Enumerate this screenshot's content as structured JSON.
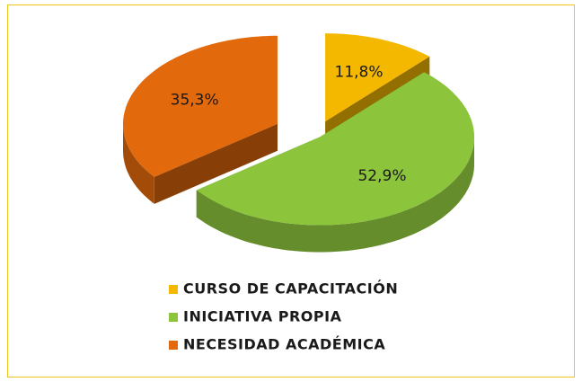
{
  "chart_data": {
    "type": "pie",
    "categories": [
      "CURSO DE CAPACITACIÓN",
      "INICIATIVA PROPIA",
      "NECESIDAD ACADÉMICA"
    ],
    "values": [
      11.8,
      52.9,
      35.3
    ],
    "value_labels": [
      "11,8%",
      "52,9%",
      "35,3%"
    ],
    "colors": [
      "#f5b800",
      "#8cc43c",
      "#e2690c"
    ],
    "legend": "bottom"
  }
}
